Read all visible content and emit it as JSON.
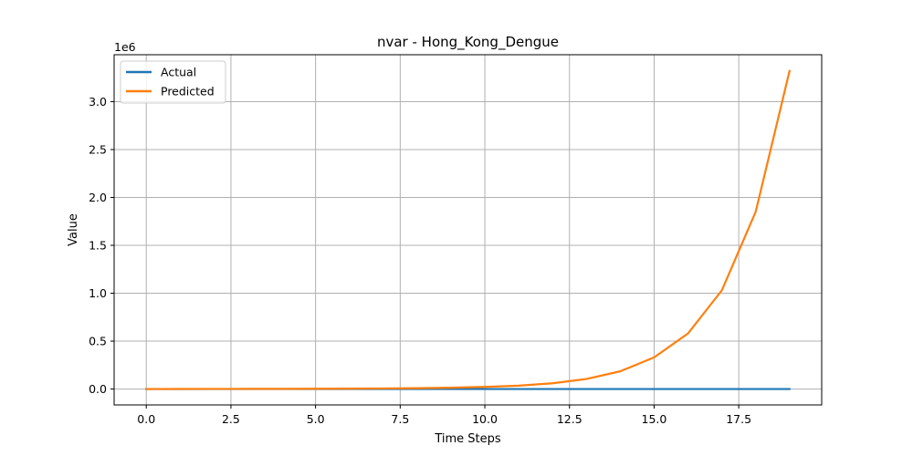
{
  "chart_data": {
    "type": "line",
    "title": "nvar - Hong_Kong_Dengue",
    "xlabel": "Time Steps",
    "ylabel": "Value",
    "y_offset_label": "1e6",
    "xlim": [
      -0.95,
      19.95
    ],
    "ylim": [
      -0.166,
      3.49
    ],
    "y_scale_factor": 1000000,
    "grid": true,
    "legend_position": "top-left",
    "x_ticks": [
      0.0,
      2.5,
      5.0,
      7.5,
      10.0,
      12.5,
      15.0,
      17.5
    ],
    "x_tick_labels": [
      "0.0",
      "2.5",
      "5.0",
      "7.5",
      "10.0",
      "12.5",
      "15.0",
      "17.5"
    ],
    "y_ticks": [
      0.0,
      0.5,
      1.0,
      1.5,
      2.0,
      2.5,
      3.0
    ],
    "y_tick_labels": [
      "0.0",
      "0.5",
      "1.0",
      "1.5",
      "2.0",
      "2.5",
      "3.0"
    ],
    "x": [
      0,
      1,
      2,
      3,
      4,
      5,
      6,
      7,
      8,
      9,
      10,
      11,
      12,
      13,
      14,
      15,
      16,
      17,
      18,
      19
    ],
    "series": [
      {
        "name": "Actual",
        "color": "#1f77b4",
        "values": [
          0,
          0,
          0,
          0,
          0,
          0,
          0,
          0,
          0,
          0,
          0,
          0,
          0,
          0,
          0,
          0,
          0,
          0,
          0,
          0
        ]
      },
      {
        "name": "Predicted",
        "color": "#ff7f0e",
        "values": [
          0.0,
          0.0005,
          0.001,
          0.0015,
          0.002,
          0.003,
          0.004,
          0.006,
          0.009,
          0.014,
          0.022,
          0.035,
          0.06,
          0.105,
          0.185,
          0.33,
          0.58,
          1.03,
          1.85,
          3.32
        ]
      }
    ]
  }
}
